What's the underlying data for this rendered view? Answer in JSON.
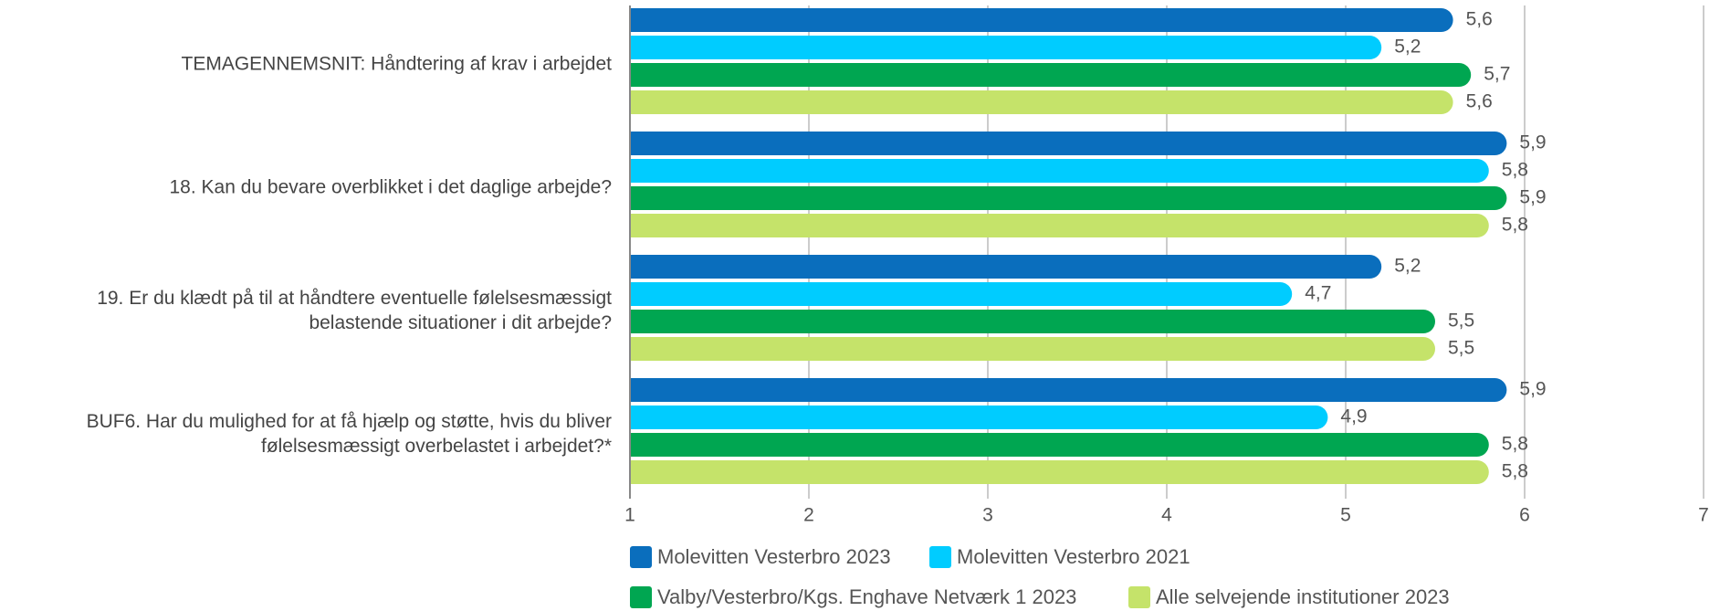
{
  "chart_data": {
    "type": "bar",
    "orientation": "horizontal",
    "categories": [
      "TEMAGENNEMSNIT: Håndtering af krav i arbejdet",
      "18. Kan du bevare overblikket i det daglige arbejde?",
      "19. Er du klædt på til at håndtere eventuelle følelsesmæssigt belastende situationer i dit arbejde?",
      "BUF6. Har du mulighed for at få hjælp og støtte, hvis du bliver følelsesmæssigt overbelastet i arbejdet?*"
    ],
    "series": [
      {
        "name": "Molevitten Vesterbro 2023",
        "color": "#0a6ebd",
        "values": [
          5.6,
          5.9,
          5.2,
          5.9
        ],
        "value_labels": [
          "5,6",
          "5,9",
          "5,2",
          "5,9"
        ]
      },
      {
        "name": "Molevitten Vesterbro 2021",
        "color": "#00ccff",
        "values": [
          5.2,
          5.8,
          4.7,
          4.9
        ],
        "value_labels": [
          "5,2",
          "5,8",
          "4,7",
          "4,9"
        ]
      },
      {
        "name": "Valby/Vesterbro/Kgs. Enghave Netværk 1 2023",
        "color": "#00a651",
        "values": [
          5.7,
          5.9,
          5.5,
          5.8
        ],
        "value_labels": [
          "5,7",
          "5,9",
          "5,5",
          "5,8"
        ]
      },
      {
        "name": "Alle selvejende institutioner 2023",
        "color": "#c5e36a",
        "values": [
          5.6,
          5.8,
          5.5,
          5.8
        ],
        "value_labels": [
          "5,6",
          "5,8",
          "5,5",
          "5,8"
        ]
      }
    ],
    "xlim": [
      1,
      7
    ],
    "xticks": [
      1,
      2,
      3,
      4,
      5,
      6,
      7
    ],
    "grid": true,
    "legend": "bottom"
  }
}
